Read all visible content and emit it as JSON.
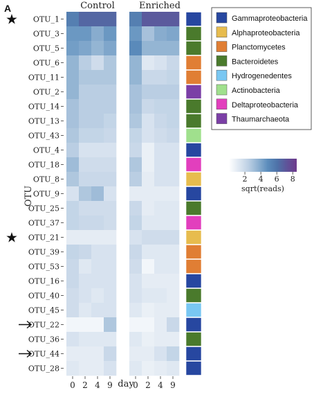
{
  "panel_label": "A",
  "chart_data": {
    "type": "heatmap",
    "panels": [
      "Control",
      "Enriched"
    ],
    "days": [
      "0",
      "2",
      "4",
      "9"
    ],
    "xlabel": "day",
    "ylabel": "OTU",
    "rows": [
      {
        "otu": "OTU_1",
        "phylum": "Gammaproteobacteria",
        "marker": "star",
        "control": [
          5.5,
          6.5,
          6.5,
          6.5
        ],
        "enriched": [
          5.5,
          7.0,
          7.0,
          7.0
        ]
      },
      {
        "otu": "OTU_3",
        "phylum": "Bacteroidetes",
        "control": [
          4.5,
          4.5,
          3.8,
          4.5
        ],
        "enriched": [
          4.5,
          3.0,
          3.8,
          4.0
        ]
      },
      {
        "otu": "OTU_5",
        "phylum": "Bacteroidetes",
        "control": [
          4.3,
          4.0,
          3.5,
          4.0
        ],
        "enriched": [
          5.0,
          3.5,
          3.5,
          3.5
        ]
      },
      {
        "otu": "OTU_6",
        "phylum": "Planctomycetes",
        "control": [
          3.5,
          2.5,
          1.8,
          2.8
        ],
        "enriched": [
          3.5,
          1.2,
          1.5,
          2.0
        ]
      },
      {
        "otu": "OTU_11",
        "phylum": "Planctomycetes",
        "control": [
          3.5,
          2.8,
          2.8,
          2.8
        ],
        "enriched": [
          3.5,
          2.0,
          2.0,
          2.2
        ]
      },
      {
        "otu": "OTU_2",
        "phylum": "Thaumarchaeota",
        "control": [
          3.5,
          2.5,
          2.5,
          2.5
        ],
        "enriched": [
          3.0,
          2.5,
          2.5,
          2.5
        ]
      },
      {
        "otu": "OTU_14",
        "phylum": "Bacteroidetes",
        "control": [
          3.0,
          2.5,
          2.5,
          2.5
        ],
        "enriched": [
          3.0,
          2.0,
          2.2,
          2.2
        ]
      },
      {
        "otu": "OTU_13",
        "phylum": "Bacteroidetes",
        "control": [
          3.0,
          2.5,
          2.5,
          2.2
        ],
        "enriched": [
          2.8,
          1.5,
          2.0,
          2.2
        ]
      },
      {
        "otu": "OTU_43",
        "phylum": "Actinobacteria",
        "control": [
          2.8,
          2.2,
          2.2,
          2.0
        ],
        "enriched": [
          2.2,
          1.5,
          1.8,
          2.0
        ]
      },
      {
        "otu": "OTU_4",
        "phylum": "Gammaproteobacteria",
        "control": [
          2.5,
          1.5,
          1.5,
          1.5
        ],
        "enriched": [
          2.0,
          0.8,
          1.5,
          1.5
        ]
      },
      {
        "otu": "OTU_18",
        "phylum": "Deltaproteobacteria",
        "control": [
          3.2,
          1.8,
          1.8,
          1.8
        ],
        "enriched": [
          2.8,
          0.8,
          1.5,
          1.5
        ]
      },
      {
        "otu": "OTU_8",
        "phylum": "Alphaproteobacteria",
        "control": [
          2.8,
          2.0,
          2.0,
          2.0
        ],
        "enriched": [
          2.5,
          1.0,
          1.5,
          1.5
        ]
      },
      {
        "otu": "OTU_9",
        "phylum": "Gammaproteobacteria",
        "control": [
          1.5,
          2.8,
          3.2,
          1.5
        ],
        "enriched": [
          1.0,
          1.0,
          1.0,
          1.0
        ]
      },
      {
        "otu": "OTU_25",
        "phylum": "Bacteroidetes",
        "control": [
          2.2,
          1.8,
          1.8,
          1.8
        ],
        "enriched": [
          2.0,
          1.0,
          1.2,
          1.2
        ]
      },
      {
        "otu": "OTU_37",
        "phylum": "Deltaproteobacteria",
        "control": [
          2.2,
          2.0,
          2.0,
          1.8
        ],
        "enriched": [
          2.2,
          1.2,
          1.2,
          1.2
        ]
      },
      {
        "otu": "OTU_21",
        "phylum": "Alphaproteobacteria",
        "marker": "star",
        "control": [
          1.0,
          1.0,
          1.0,
          1.0
        ],
        "enriched": [
          1.5,
          1.8,
          1.8,
          1.8
        ]
      },
      {
        "otu": "OTU_39",
        "phylum": "Planctomycetes",
        "control": [
          2.2,
          2.0,
          1.5,
          1.5
        ],
        "enriched": [
          2.0,
          1.2,
          1.2,
          1.2
        ]
      },
      {
        "otu": "OTU_53",
        "phylum": "Planctomycetes",
        "control": [
          2.0,
          1.2,
          1.5,
          1.5
        ],
        "enriched": [
          1.8,
          0.5,
          1.2,
          1.2
        ]
      },
      {
        "otu": "OTU_16",
        "phylum": "Gammaproteobacteria",
        "control": [
          2.0,
          1.5,
          1.5,
          1.5
        ],
        "enriched": [
          1.5,
          1.0,
          1.0,
          1.0
        ]
      },
      {
        "otu": "OTU_40",
        "phylum": "Bacteroidetes",
        "control": [
          1.8,
          1.5,
          1.2,
          1.5
        ],
        "enriched": [
          1.5,
          1.2,
          1.2,
          1.0
        ]
      },
      {
        "otu": "OTU_45",
        "phylum": "Hydrogenedentes",
        "control": [
          1.8,
          1.2,
          1.5,
          1.5
        ],
        "enriched": [
          1.2,
          0.8,
          1.0,
          1.0
        ]
      },
      {
        "otu": "OTU_22",
        "phylum": "Gammaproteobacteria",
        "marker": "arrow",
        "control": [
          0.5,
          0.5,
          0.5,
          2.8
        ],
        "enriched": [
          0.5,
          0.5,
          1.0,
          2.0
        ]
      },
      {
        "otu": "OTU_36",
        "phylum": "Bacteroidetes",
        "control": [
          1.5,
          1.2,
          1.2,
          1.2
        ],
        "enriched": [
          1.2,
          0.8,
          1.0,
          1.0
        ]
      },
      {
        "otu": "OTU_44",
        "phylum": "Gammaproteobacteria",
        "marker": "arrow",
        "control": [
          1.0,
          1.0,
          1.0,
          2.0
        ],
        "enriched": [
          1.0,
          1.0,
          1.5,
          2.2
        ]
      },
      {
        "otu": "OTU_28",
        "phylum": "Gammaproteobacteria",
        "control": [
          1.2,
          1.0,
          1.0,
          1.5
        ],
        "enriched": [
          1.2,
          0.8,
          1.0,
          1.2
        ]
      }
    ],
    "phylum_legend": [
      {
        "name": "Gammaproteobacteria",
        "color": "#2747a0"
      },
      {
        "name": "Alphaproteobacteria",
        "color": "#e7bc4e"
      },
      {
        "name": "Planctomycetes",
        "color": "#e07e34"
      },
      {
        "name": "Bacteroidetes",
        "color": "#4a7a2c"
      },
      {
        "name": "Hydrogenedentes",
        "color": "#79c7f2"
      },
      {
        "name": "Actinobacteria",
        "color": "#a0e08d"
      },
      {
        "name": "Deltaproteobacteria",
        "color": "#e23fbd"
      },
      {
        "name": "Thaumarchaeota",
        "color": "#7b3fa6"
      }
    ],
    "colorbar": {
      "title": "sqrt(reads)",
      "ticks": [
        "2",
        "4",
        "6",
        "8"
      ],
      "range": [
        0,
        8.5
      ],
      "colors": [
        "#ffffff",
        "#dfe8f2",
        "#bdd0e4",
        "#8eb1d1",
        "#5c8dbc",
        "#4e72a8",
        "#5f5399",
        "#6e3a8c"
      ]
    }
  }
}
